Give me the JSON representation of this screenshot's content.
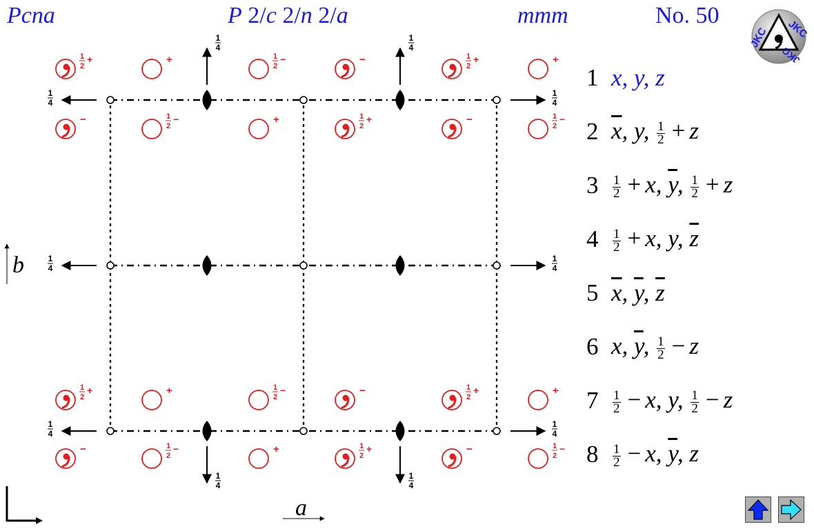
{
  "header": {
    "short_symbol": "Pcna",
    "full_symbol": "P 2/c 2/n 2/a",
    "point_group": "mmm",
    "number": "No. 50"
  },
  "logo": {
    "text_top": "JKC",
    "text_bottom": "JKC"
  },
  "diagram": {
    "axis_b": "b",
    "axis_a": "a",
    "height_label": "1/4",
    "sign_plus": "+",
    "sign_minus": "−",
    "sign_half_plus": "½+",
    "sign_half_minus": "½−"
  },
  "positions": [
    {
      "n": "1",
      "coords": [
        "x",
        "y",
        "z"
      ]
    },
    {
      "n": "2",
      "coords": [
        "x̄",
        "y",
        "½ + z"
      ]
    },
    {
      "n": "3",
      "coords": [
        "½ + x",
        "ȳ",
        "½ + z"
      ]
    },
    {
      "n": "4",
      "coords": [
        "½ + x",
        "y",
        "z̄"
      ]
    },
    {
      "n": "5",
      "coords": [
        "x̄",
        "ȳ",
        "z̄"
      ]
    },
    {
      "n": "6",
      "coords": [
        "x",
        "ȳ",
        "½ − z"
      ]
    },
    {
      "n": "7",
      "coords": [
        "½ − x",
        "y",
        "½ − z"
      ]
    },
    {
      "n": "8",
      "coords": [
        "½ − x",
        "ȳ",
        "z"
      ]
    }
  ],
  "nav": {
    "up": "up-arrow-icon",
    "next": "right-arrow-icon"
  }
}
